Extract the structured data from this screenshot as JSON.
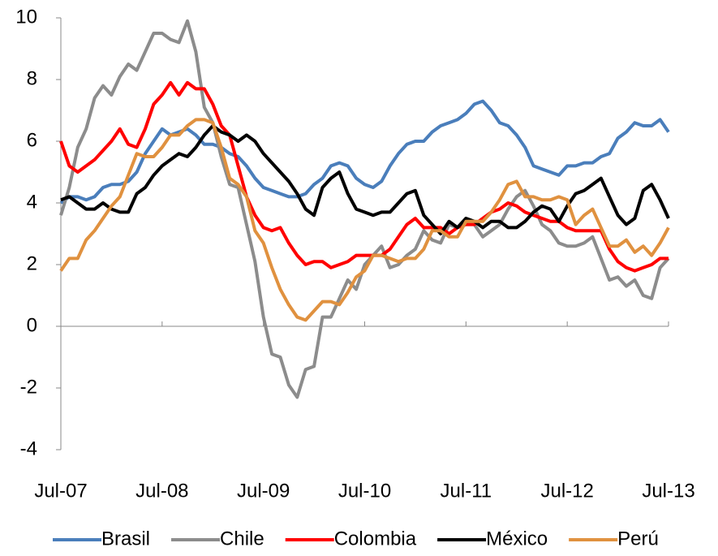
{
  "chart_data": {
    "type": "line",
    "categories": [
      "Jul-07",
      null,
      null,
      null,
      null,
      null,
      null,
      null,
      null,
      null,
      null,
      null,
      "Jul-08",
      null,
      null,
      null,
      null,
      null,
      null,
      null,
      null,
      null,
      null,
      null,
      "Jul-09",
      null,
      null,
      null,
      null,
      null,
      null,
      null,
      null,
      null,
      null,
      null,
      "Jul-10",
      null,
      null,
      null,
      null,
      null,
      null,
      null,
      null,
      null,
      null,
      null,
      "Jul-11",
      null,
      null,
      null,
      null,
      null,
      null,
      null,
      null,
      null,
      null,
      null,
      "Jul-12",
      null,
      null,
      null,
      null,
      null,
      null,
      null,
      null,
      null,
      null,
      null,
      "Jul-13"
    ],
    "ylim": [
      -4,
      10
    ],
    "yticks": [
      -4,
      -2,
      0,
      2,
      4,
      6,
      8,
      10
    ],
    "legend": "bottom",
    "series": [
      {
        "name": "Brasil",
        "color": "#4a7ebb",
        "values": [
          4.0,
          4.2,
          4.2,
          4.1,
          4.2,
          4.5,
          4.6,
          4.6,
          4.7,
          5.0,
          5.6,
          6.0,
          6.4,
          6.2,
          6.3,
          6.4,
          6.2,
          5.9,
          5.9,
          5.8,
          5.6,
          5.5,
          5.2,
          4.8,
          4.5,
          4.4,
          4.3,
          4.2,
          4.2,
          4.3,
          4.6,
          4.8,
          5.2,
          5.3,
          5.2,
          4.8,
          4.6,
          4.5,
          4.7,
          5.2,
          5.6,
          5.9,
          6.0,
          6.0,
          6.3,
          6.5,
          6.6,
          6.7,
          6.9,
          7.2,
          7.3,
          7.0,
          6.6,
          6.5,
          6.2,
          5.8,
          5.2,
          5.1,
          5.0,
          4.9,
          5.2,
          5.2,
          5.3,
          5.3,
          5.5,
          5.6,
          6.1,
          6.3,
          6.6,
          6.5,
          6.5,
          6.7,
          6.3
        ]
      },
      {
        "name": "Chile",
        "color": "#8c8c8c",
        "values": [
          3.6,
          4.5,
          5.8,
          6.4,
          7.4,
          7.8,
          7.5,
          8.1,
          8.5,
          8.3,
          8.9,
          9.5,
          9.5,
          9.3,
          9.2,
          9.9,
          8.9,
          7.1,
          6.6,
          5.5,
          4.6,
          4.5,
          3.3,
          2.1,
          0.3,
          -0.9,
          -1.0,
          -1.9,
          -2.3,
          -1.4,
          -1.3,
          0.3,
          0.3,
          0.9,
          1.5,
          1.2,
          2.0,
          2.3,
          2.6,
          1.9,
          2.0,
          2.3,
          2.5,
          3.1,
          2.8,
          2.7,
          3.3,
          3.2,
          3.4,
          3.3,
          2.9,
          3.1,
          3.3,
          3.8,
          4.2,
          4.4,
          3.9,
          3.3,
          3.1,
          2.7,
          2.6,
          2.6,
          2.7,
          2.9,
          2.2,
          1.5,
          1.6,
          1.3,
          1.5,
          1.0,
          0.9,
          1.9,
          2.2
        ]
      },
      {
        "name": "Colombia",
        "color": "#ff0000",
        "values": [
          6.0,
          5.2,
          5.0,
          5.2,
          5.4,
          5.7,
          6.0,
          6.4,
          5.9,
          5.8,
          6.4,
          7.2,
          7.5,
          7.9,
          7.5,
          7.9,
          7.7,
          7.7,
          7.2,
          6.5,
          6.2,
          5.2,
          4.2,
          3.6,
          3.2,
          3.1,
          3.2,
          2.7,
          2.3,
          2.0,
          2.1,
          2.1,
          1.9,
          2.0,
          2.1,
          2.3,
          2.3,
          2.3,
          2.3,
          2.5,
          2.9,
          3.3,
          3.5,
          3.2,
          3.2,
          3.2,
          3.0,
          3.2,
          3.3,
          3.3,
          3.5,
          3.7,
          3.8,
          4.0,
          3.9,
          3.7,
          3.6,
          3.5,
          3.4,
          3.4,
          3.2,
          3.1,
          3.1,
          3.1,
          3.1,
          2.5,
          2.1,
          1.9,
          1.8,
          1.9,
          2.0,
          2.2,
          2.2
        ]
      },
      {
        "name": "México",
        "color": "#000000",
        "values": [
          4.1,
          4.2,
          4.0,
          3.8,
          3.8,
          4.0,
          3.8,
          3.7,
          3.7,
          4.3,
          4.5,
          4.9,
          5.2,
          5.4,
          5.6,
          5.5,
          5.8,
          6.2,
          6.5,
          6.3,
          6.2,
          6.0,
          6.2,
          6.0,
          5.6,
          5.3,
          5.0,
          4.7,
          4.3,
          3.8,
          3.6,
          4.5,
          4.8,
          5.0,
          4.3,
          3.8,
          3.7,
          3.6,
          3.7,
          3.7,
          4.0,
          4.3,
          4.4,
          3.6,
          3.3,
          3.0,
          3.4,
          3.2,
          3.5,
          3.4,
          3.2,
          3.4,
          3.4,
          3.2,
          3.2,
          3.4,
          3.7,
          3.9,
          3.8,
          3.4,
          3.9,
          4.3,
          4.4,
          4.6,
          4.8,
          4.2,
          3.6,
          3.3,
          3.5,
          4.4,
          4.6,
          4.1,
          3.5
        ]
      },
      {
        "name": "Perú",
        "color": "#e0913f",
        "values": [
          1.8,
          2.2,
          2.2,
          2.8,
          3.1,
          3.5,
          3.9,
          4.2,
          4.9,
          5.6,
          5.5,
          5.5,
          5.8,
          6.2,
          6.2,
          6.5,
          6.7,
          6.7,
          6.6,
          5.8,
          4.8,
          4.6,
          4.2,
          3.1,
          2.7,
          1.9,
          1.2,
          0.7,
          0.3,
          0.2,
          0.5,
          0.8,
          0.8,
          0.7,
          1.1,
          1.6,
          1.8,
          2.3,
          2.3,
          2.2,
          2.1,
          2.2,
          2.2,
          2.5,
          3.1,
          3.1,
          2.9,
          2.9,
          3.4,
          3.4,
          3.4,
          3.7,
          4.1,
          4.6,
          4.7,
          4.2,
          4.2,
          4.1,
          4.1,
          4.2,
          4.1,
          3.3,
          3.6,
          3.8,
          3.2,
          2.6,
          2.6,
          2.8,
          2.4,
          2.6,
          2.3,
          2.7,
          3.2
        ]
      }
    ]
  }
}
